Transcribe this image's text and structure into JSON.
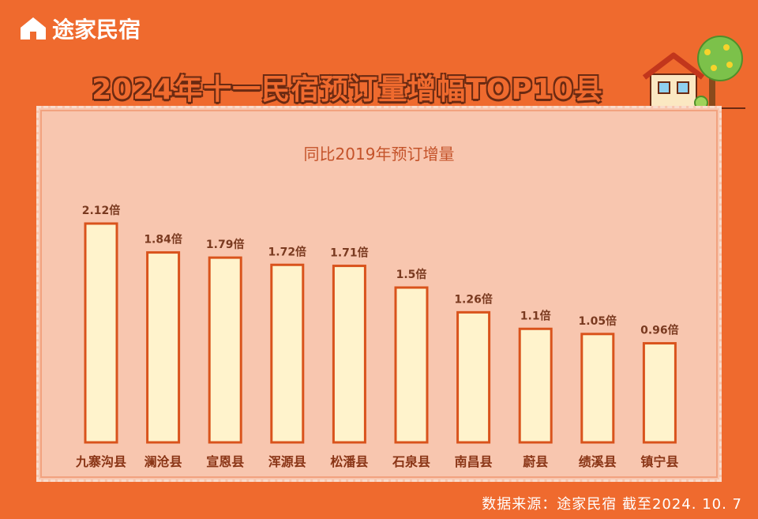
{
  "brand": {
    "name": "途家民宿"
  },
  "title": "2024年十一民宿预订量增幅TOP10县",
  "source": "数据来源：途家民宿 截至2024. 10. 7",
  "colors": {
    "background": "#ef6a2e",
    "panel": "#f8c6af",
    "bar_fill": "#fff3cc",
    "bar_stroke": "#d9531c",
    "label": "#8a3516",
    "value_label": "#7a3a20"
  },
  "chart_data": {
    "type": "bar",
    "title": "同比2019年预订增量",
    "xlabel": "",
    "ylabel": "",
    "categories": [
      "九寨沟县",
      "澜沧县",
      "宣恩县",
      "浑源县",
      "松潘县",
      "石泉县",
      "南昌县",
      "蔚县",
      "绩溪县",
      "镇宁县"
    ],
    "values": [
      2.12,
      1.84,
      1.79,
      1.72,
      1.71,
      1.5,
      1.26,
      1.1,
      1.05,
      0.96
    ],
    "value_labels": [
      "2.12倍",
      "1.84倍",
      "1.79倍",
      "1.72倍",
      "1.71倍",
      "1.5倍",
      "1.26倍",
      "1.1倍",
      "1.05倍",
      "0.96倍"
    ],
    "ylim": [
      0,
      2.12
    ],
    "grid": false,
    "legend": "none"
  }
}
